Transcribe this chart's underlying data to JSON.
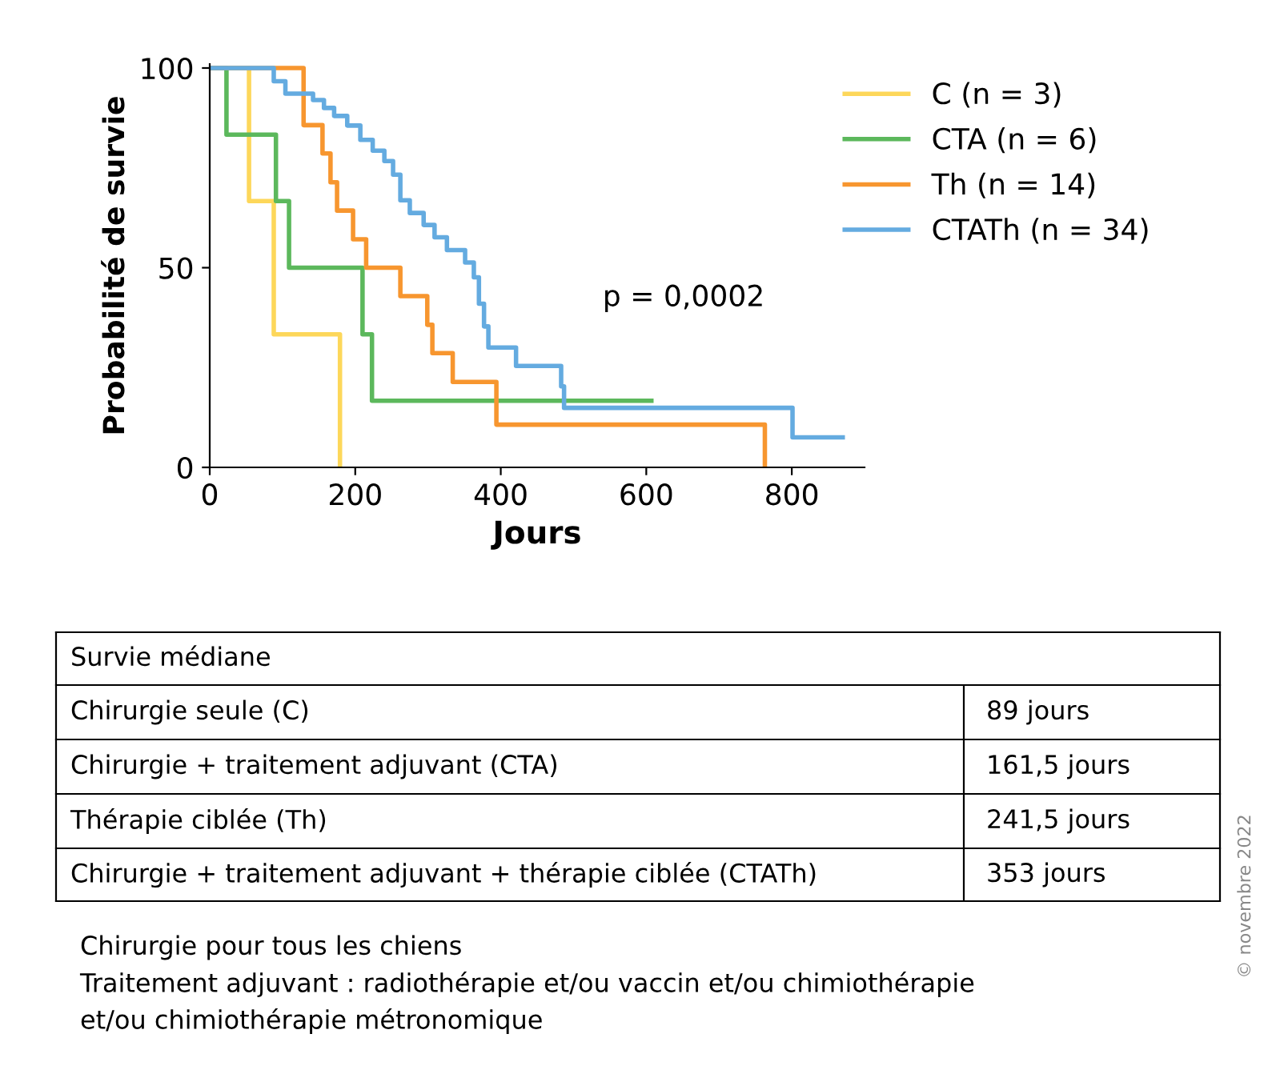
{
  "chart_data": {
    "type": "step",
    "xlabel": "Jours",
    "ylabel": "Probabilité de survie",
    "xlim": [
      0,
      900
    ],
    "ylim": [
      0,
      101
    ],
    "xticks": [
      0,
      200,
      400,
      600,
      800
    ],
    "yticks": [
      0,
      50,
      100
    ],
    "legend": "top right",
    "grid": false,
    "marker": "none",
    "line_style": "solid",
    "series": [
      {
        "name": "C (n = 3)",
        "color": "#fdd75a",
        "x": [
          0,
          54,
          88,
          179
        ],
        "values": [
          100,
          66.7,
          33.3,
          0
        ]
      },
      {
        "name": "CTA (n = 6)",
        "color": "#5cb85c",
        "x": [
          0,
          23,
          91,
          109,
          210,
          223,
          607
        ],
        "values": [
          100,
          83.3,
          66.7,
          50,
          33.3,
          16.7,
          16.7
        ]
      },
      {
        "name": "Th (n = 14)",
        "color": "#f7962f",
        "x": [
          0,
          129,
          155,
          166,
          175,
          197,
          215,
          262,
          299,
          306,
          334,
          394,
          763
        ],
        "values": [
          100,
          85.7,
          78.6,
          71.4,
          64.3,
          57.1,
          50,
          42.9,
          35.7,
          28.6,
          21.4,
          10.7,
          0
        ]
      },
      {
        "name": "CTATh (n = 34)",
        "color": "#64abe0",
        "x": [
          0,
          88,
          104,
          142,
          157,
          171,
          189,
          207,
          224,
          240,
          252,
          262,
          275,
          294,
          309,
          326,
          351,
          363,
          370,
          377,
          383,
          421,
          483,
          487,
          801,
          870
        ],
        "values": [
          100,
          96.7,
          93.6,
          92,
          90,
          88,
          85.6,
          82,
          79.3,
          76.7,
          73.3,
          66.9,
          63.7,
          60.7,
          57.6,
          54.4,
          51.3,
          47.6,
          41,
          35.3,
          30,
          25.4,
          20.3,
          14.9,
          7.5,
          7.5
        ]
      }
    ],
    "annotations": [
      "p = 0,0002",
      "Survie médiane",
      "Chirurgie seule (C)",
      "89 jours",
      "Chirurgie + traitement adjuvant (CTA)",
      "161,5 jours",
      "Thérapie ciblée (Th)",
      "241,5 jours",
      "Chirurgie + traitement adjuvant + thérapie ciblée (CTATh)",
      "353 jours",
      "Chirurgie pour tous les chiens",
      "Traitement adjuvant : radiothérapie et/ou vaccin et/ou chimiothérapie",
      "et/ou chimiothérapie métronomique",
      "© novembre 2022"
    ]
  }
}
